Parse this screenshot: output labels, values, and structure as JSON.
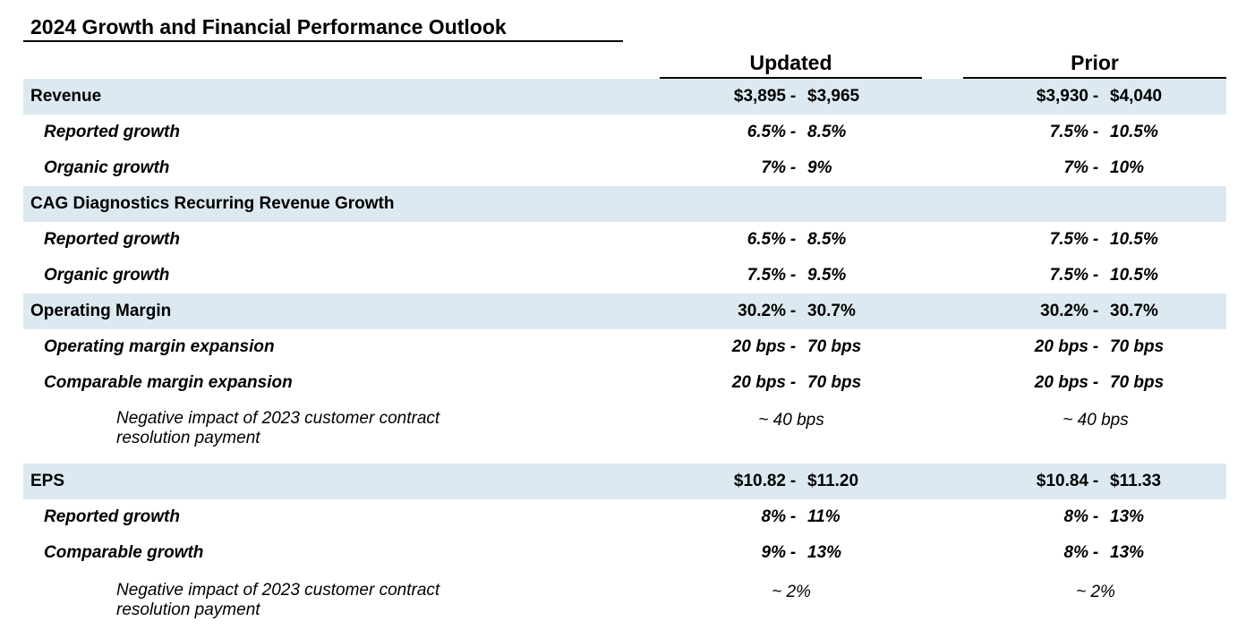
{
  "title": "2024 Growth and Financial Performance Outlook",
  "columns": {
    "updated": "Updated",
    "prior": "Prior"
  },
  "dash": "-",
  "rows": [
    {
      "label": "Revenue",
      "updated": [
        "$3,895",
        "$3,965"
      ],
      "prior": [
        "$3,930",
        "$4,040"
      ]
    },
    {
      "label": "Reported growth",
      "updated": [
        "6.5%",
        "8.5%"
      ],
      "prior": [
        "7.5%",
        "10.5%"
      ]
    },
    {
      "label": "Organic growth",
      "updated": [
        "7%",
        "9%"
      ],
      "prior": [
        "7%",
        "10%"
      ]
    },
    {
      "label": "CAG Diagnostics Recurring Revenue Growth"
    },
    {
      "label": "Reported growth",
      "updated": [
        "6.5%",
        "8.5%"
      ],
      "prior": [
        "7.5%",
        "10.5%"
      ]
    },
    {
      "label": "Organic growth",
      "updated": [
        "7.5%",
        "9.5%"
      ],
      "prior": [
        "7.5%",
        "10.5%"
      ]
    },
    {
      "label": "Operating Margin",
      "updated": [
        "30.2%",
        "30.7%"
      ],
      "prior": [
        "30.2%",
        "30.7%"
      ]
    },
    {
      "label": "Operating margin expansion",
      "updated": [
        "20 bps",
        "70 bps"
      ],
      "prior": [
        "20 bps",
        "70 bps"
      ]
    },
    {
      "label": "Comparable margin expansion",
      "updated": [
        "20 bps",
        "70 bps"
      ],
      "prior": [
        "20 bps",
        "70 bps"
      ]
    },
    {
      "label": "EPS",
      "updated": [
        "$10.82",
        "$11.20"
      ],
      "prior": [
        "$10.84",
        "$11.33"
      ]
    },
    {
      "label": "Reported growth",
      "updated": [
        "8%",
        "11%"
      ],
      "prior": [
        "8%",
        "13%"
      ]
    },
    {
      "label": "Comparable growth",
      "updated": [
        "9%",
        "13%"
      ],
      "prior": [
        "8%",
        "13%"
      ]
    }
  ],
  "notes": [
    {
      "line1": "Negative impact of 2023 customer contract",
      "line2": "resolution payment",
      "updated": "~ 40 bps",
      "prior": "~ 40 bps"
    },
    {
      "line1": "Negative impact of 2023 customer contract",
      "line2": "resolution payment",
      "updated": "~ 2%",
      "prior": "~ 2%"
    }
  ]
}
